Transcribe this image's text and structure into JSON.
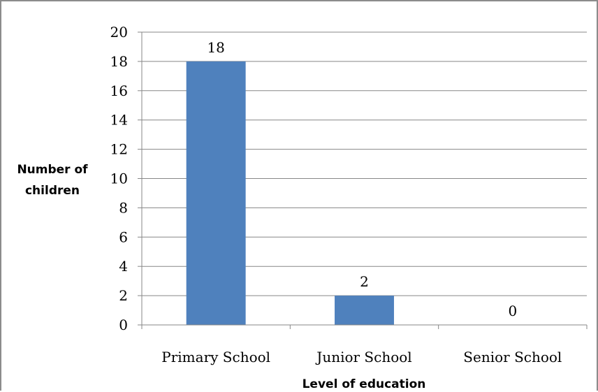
{
  "chart_data": {
    "type": "bar",
    "categories": [
      "Primary School",
      "Junior School",
      "Senior School"
    ],
    "values": [
      18,
      2,
      0
    ],
    "data_labels": [
      "18",
      "2",
      "0"
    ],
    "xlabel": "Level of education",
    "ylabel_lines": [
      "Number of",
      "children"
    ],
    "ylim": [
      0,
      20
    ],
    "yticks": [
      0,
      2,
      4,
      6,
      8,
      10,
      12,
      14,
      16,
      18,
      20
    ],
    "grid": true,
    "legend": "none",
    "bar_color": "#4f81bd",
    "grid_color": "#878787",
    "axis_color": "#878787"
  }
}
